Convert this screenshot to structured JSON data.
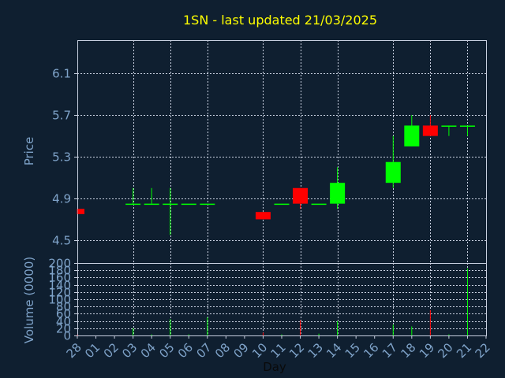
{
  "colors": {
    "background": "#0f1f30",
    "plot_border": "#c8d0e0",
    "grid": "#c8d0e0",
    "title": "#ffff00",
    "axis_text": "#7fa3c9",
    "xlabel_text": "#0a0a0a",
    "up": "#00ff00",
    "down": "#ff0000"
  },
  "chart_data": [
    {
      "type": "candlestick",
      "title": "1SN - last updated 21/03/2025",
      "ylabel": "Price",
      "ylim": [
        4.28,
        6.42
      ],
      "yticks": [
        4.5,
        4.9,
        5.3,
        5.7,
        6.1
      ],
      "ytick_labels": [
        "4.5",
        "4.9",
        "5.3",
        "5.7",
        "6.1"
      ],
      "grid": true,
      "candles": [
        {
          "day": "28",
          "open": 4.8,
          "close": 4.75,
          "high": 4.8,
          "low": 4.75
        },
        {
          "day": "03",
          "open": 4.85,
          "close": 4.85,
          "high": 5.0,
          "low": 4.85
        },
        {
          "day": "04",
          "open": 4.85,
          "close": 4.85,
          "high": 5.0,
          "low": 4.85
        },
        {
          "day": "05",
          "open": 4.85,
          "close": 4.85,
          "high": 5.0,
          "low": 4.55
        },
        {
          "day": "06",
          "open": 4.85,
          "close": 4.85,
          "high": 4.85,
          "low": 4.85
        },
        {
          "day": "07",
          "open": 4.85,
          "close": 4.85,
          "high": 4.85,
          "low": 4.85
        },
        {
          "day": "10",
          "open": 4.77,
          "close": 4.7,
          "high": 4.77,
          "low": 4.7
        },
        {
          "day": "11",
          "open": 4.85,
          "close": 4.85,
          "high": 4.85,
          "low": 4.85
        },
        {
          "day": "12",
          "open": 5.0,
          "close": 4.85,
          "high": 5.0,
          "low": 4.8
        },
        {
          "day": "13",
          "open": 4.85,
          "close": 4.85,
          "high": 4.85,
          "low": 4.85
        },
        {
          "day": "14",
          "open": 4.85,
          "close": 5.05,
          "high": 5.2,
          "low": 4.8
        },
        {
          "day": "17",
          "open": 5.05,
          "close": 5.25,
          "high": 5.5,
          "low": 5.0
        },
        {
          "day": "18",
          "open": 5.4,
          "close": 5.6,
          "high": 5.7,
          "low": 5.4
        },
        {
          "day": "19",
          "open": 5.6,
          "close": 5.5,
          "high": 5.7,
          "low": 5.5
        },
        {
          "day": "20",
          "open": 5.6,
          "close": 5.6,
          "high": 5.6,
          "low": 5.5
        },
        {
          "day": "21",
          "open": 5.6,
          "close": 5.6,
          "high": 5.6,
          "low": 5.5
        }
      ]
    },
    {
      "type": "bar",
      "ylabel": "Volume (0000)",
      "xlabel": "Day",
      "ylim": [
        0,
        200
      ],
      "yticks": [
        0,
        20,
        40,
        60,
        80,
        100,
        120,
        140,
        160,
        180,
        200
      ],
      "ytick_labels": [
        "0",
        "20",
        "40",
        "60",
        "80",
        "100",
        "120",
        "140",
        "160",
        "180",
        "200"
      ],
      "grid": true,
      "categories": [
        "28",
        "01",
        "02",
        "03",
        "04",
        "05",
        "06",
        "07",
        "08",
        "09",
        "10",
        "11",
        "12",
        "13",
        "14",
        "15",
        "16",
        "17",
        "18",
        "19",
        "20",
        "21",
        "22"
      ],
      "bars": [
        {
          "day": "28",
          "value": 2,
          "direction": "down"
        },
        {
          "day": "03",
          "value": 20,
          "direction": "up"
        },
        {
          "day": "04",
          "value": 3,
          "direction": "up"
        },
        {
          "day": "05",
          "value": 45,
          "direction": "up"
        },
        {
          "day": "06",
          "value": 3,
          "direction": "up"
        },
        {
          "day": "07",
          "value": 50,
          "direction": "up"
        },
        {
          "day": "10",
          "value": 8,
          "direction": "down"
        },
        {
          "day": "11",
          "value": 3,
          "direction": "up"
        },
        {
          "day": "12",
          "value": 42,
          "direction": "down"
        },
        {
          "day": "13",
          "value": 5,
          "direction": "up"
        },
        {
          "day": "14",
          "value": 40,
          "direction": "up"
        },
        {
          "day": "17",
          "value": 30,
          "direction": "up"
        },
        {
          "day": "18",
          "value": 25,
          "direction": "up"
        },
        {
          "day": "19",
          "value": 70,
          "direction": "down"
        },
        {
          "day": "20",
          "value": 3,
          "direction": "up"
        },
        {
          "day": "21",
          "value": 185,
          "direction": "up"
        }
      ]
    }
  ]
}
